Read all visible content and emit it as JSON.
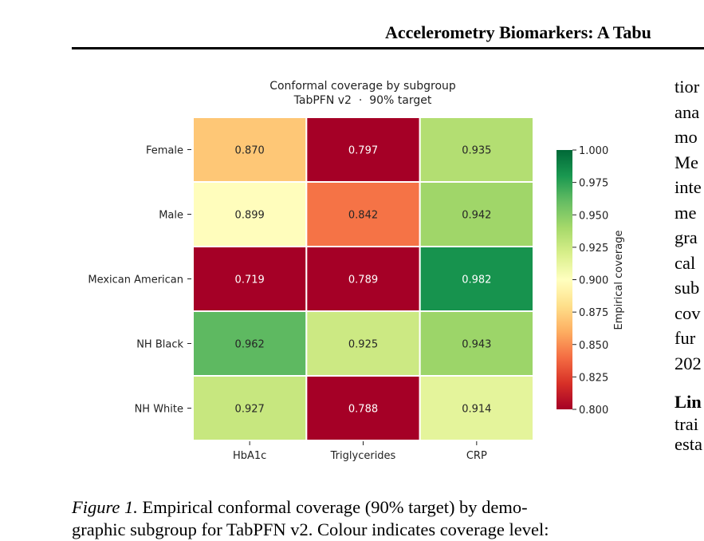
{
  "running_head": "Accelerometry Biomarkers: A Tabu",
  "figure": {
    "caption_label": "Figure 1.",
    "caption_line1_rest": "Empirical conformal coverage (90% target) by demo-",
    "caption_line2": "graphic subgroup for TabPFN v2. Colour indicates coverage level:"
  },
  "right_column": {
    "lines": [
      "tior",
      "ana",
      "mo",
      "Me",
      "inte",
      "me",
      "gra",
      "cal",
      "sub",
      "cov",
      "fur",
      "202"
    ],
    "heading": "Lin",
    "after_lines": [
      "trai",
      "esta"
    ]
  },
  "chart_data": {
    "type": "heatmap",
    "title": "Conformal coverage by subgroup",
    "subtitle": "TabPFN v2  ·  90% target",
    "rows": [
      "Female",
      "Male",
      "Mexican American",
      "NH Black",
      "NH White"
    ],
    "columns": [
      "HbA1c",
      "Triglycerides",
      "CRP"
    ],
    "values": [
      [
        0.87,
        0.797,
        0.935
      ],
      [
        0.899,
        0.842,
        0.942
      ],
      [
        0.719,
        0.789,
        0.982
      ],
      [
        0.962,
        0.925,
        0.943
      ],
      [
        0.927,
        0.788,
        0.914
      ]
    ],
    "colorbar": {
      "label": "Empirical coverage",
      "min": 0.8,
      "max": 1.0,
      "ticks": [
        "0.800",
        "0.825",
        "0.850",
        "0.875",
        "0.900",
        "0.925",
        "0.950",
        "0.975",
        "1.000"
      ],
      "colormap": "RdYlGn"
    }
  }
}
